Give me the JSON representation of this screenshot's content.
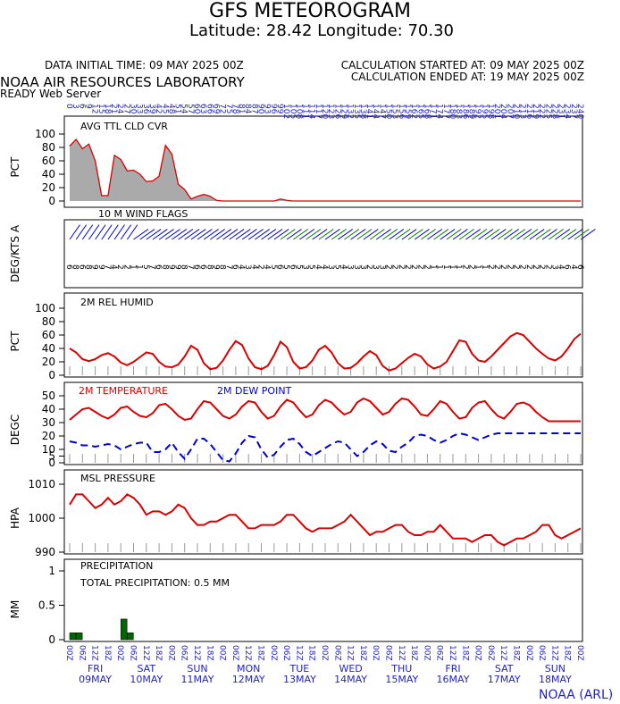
{
  "header": {
    "title": "GFS METEOROGRAM",
    "location": "Latitude: 28.42 Longitude:  70.30",
    "data_initial_time": "DATA INITIAL TIME: 09 MAY 2025 00Z",
    "calc_started": "CALCULATION STARTED AT: 09 MAY 2025 00Z",
    "calc_ended": "CALCULATION ENDED AT: 19 MAY 2025 00Z",
    "org": "NOAA AIR RESOURCES LABORATORY",
    "server": "READY Web Server",
    "footer": "NOAA (ARL)"
  },
  "top_axis_hours": [
    "0",
    "3",
    "6",
    "9",
    "12",
    "15",
    "18",
    "21",
    "24",
    "27",
    "30",
    "33",
    "36",
    "39",
    "42",
    "45",
    "48",
    "51",
    "54",
    "57",
    "60",
    "63",
    "66",
    "69",
    "72",
    "75",
    "78",
    "81",
    "84",
    "87",
    "90",
    "93",
    "96",
    "99",
    "102",
    "105",
    "108",
    "111",
    "114",
    "117",
    "120",
    "123",
    "126",
    "129",
    "132",
    "135",
    "138",
    "141",
    "144",
    "147",
    "150",
    "153",
    "156",
    "159",
    "162",
    "165",
    "168",
    "171",
    "174",
    "177",
    "180",
    "183",
    "186",
    "189",
    "192",
    "195",
    "198",
    "201",
    "204",
    "207",
    "210",
    "213",
    "216",
    "219",
    "222",
    "225",
    "228",
    "231",
    "234",
    "237",
    "240"
  ],
  "bottom_axis_hours": [
    "00Z",
    "06Z",
    "12Z",
    "18Z"
  ],
  "days": [
    {
      "dow": "FRI",
      "date": "09MAY"
    },
    {
      "dow": "SAT",
      "date": "10MAY"
    },
    {
      "dow": "SUN",
      "date": "11MAY"
    },
    {
      "dow": "MON",
      "date": "12MAY"
    },
    {
      "dow": "TUE",
      "date": "13MAY"
    },
    {
      "dow": "WED",
      "date": "14MAY"
    },
    {
      "dow": "THU",
      "date": "15MAY"
    },
    {
      "dow": "FRI",
      "date": "16MAY"
    },
    {
      "dow": "SAT",
      "date": "17MAY"
    },
    {
      "dow": "SUN",
      "date": "18MAY"
    }
  ],
  "colors": {
    "red": "#dd0000",
    "blue": "#0000dd",
    "green": "#006600",
    "gray": "#999999",
    "axis_blue": "#2222cc"
  },
  "chart_data": [
    {
      "type": "area",
      "title": "AVG TTL CLD CVR",
      "ylabel": "PCT",
      "ylim": [
        0,
        100
      ],
      "yticks": [
        0,
        20,
        40,
        60,
        80,
        100
      ],
      "x_hours": [
        0,
        3,
        6,
        9,
        12,
        15,
        18,
        21,
        24,
        27,
        30,
        33,
        36,
        39,
        42,
        45,
        48,
        51,
        54,
        57,
        60,
        63,
        66,
        69,
        72,
        96,
        99,
        102,
        105,
        108,
        111,
        240
      ],
      "values": [
        82,
        92,
        78,
        85,
        60,
        8,
        8,
        68,
        62,
        45,
        46,
        40,
        29,
        30,
        37,
        83,
        70,
        25,
        17,
        3,
        7,
        10,
        7,
        1,
        0,
        0,
        3,
        1,
        0,
        0,
        0,
        0
      ]
    },
    {
      "type": "wind_barbs",
      "title": "10 M  WIND FLAGS",
      "ylabel": "DEG/KTS A",
      "speeds_kts": [
        "6",
        "8",
        "6",
        "8",
        "9",
        "9",
        "7",
        "4",
        "2",
        "2",
        "1",
        "1",
        "5",
        "7",
        "6",
        "8",
        "9",
        "9",
        "8",
        "7",
        "6",
        "6",
        "8",
        "9",
        "8",
        "7",
        "6",
        "4",
        "3",
        "4",
        "2",
        "4",
        "5",
        "6",
        "5",
        "6",
        "5",
        "3",
        "5",
        "4",
        "4",
        "3",
        "5",
        "4",
        "3",
        "3",
        "3",
        "2",
        "3",
        "3",
        "2",
        "2",
        "2",
        "2",
        "2",
        "2",
        "2",
        "1",
        "1",
        "1",
        "1",
        "1",
        "2",
        "2",
        "1",
        "1",
        "2",
        "2",
        "2",
        "2",
        "2",
        "2",
        "2",
        "2",
        "2",
        "2",
        "3",
        "4",
        "6",
        "4",
        "6"
      ]
    },
    {
      "type": "line",
      "title": "2M REL HUMID",
      "ylabel": "PCT",
      "ylim": [
        0,
        100
      ],
      "yticks": [
        0,
        20,
        40,
        60,
        80,
        100
      ],
      "x_hours": [
        0,
        3,
        6,
        9,
        12,
        15,
        18,
        21,
        24,
        27,
        30,
        33,
        36,
        39,
        42,
        45,
        48,
        51,
        54,
        57,
        60,
        63,
        66,
        69,
        72,
        75,
        78,
        81,
        84,
        87,
        90,
        93,
        96,
        99,
        102,
        105,
        108,
        111,
        114,
        117,
        120,
        123,
        126,
        129,
        132,
        135,
        138,
        141,
        144,
        147,
        150,
        153,
        156,
        159,
        162,
        165,
        168,
        171,
        174,
        177,
        180,
        183,
        186,
        189,
        192,
        195,
        198,
        201,
        204,
        207,
        210,
        213,
        216,
        219,
        222,
        225,
        228,
        231,
        234,
        237,
        240
      ],
      "values": [
        40,
        34,
        24,
        21,
        24,
        30,
        33,
        28,
        19,
        15,
        20,
        27,
        34,
        32,
        20,
        13,
        12,
        16,
        28,
        44,
        38,
        18,
        9,
        11,
        22,
        38,
        51,
        45,
        25,
        12,
        9,
        14,
        30,
        50,
        42,
        20,
        10,
        12,
        22,
        38,
        44,
        34,
        18,
        10,
        11,
        18,
        28,
        36,
        30,
        14,
        7,
        10,
        18,
        26,
        32,
        28,
        16,
        10,
        13,
        20,
        36,
        52,
        50,
        32,
        22,
        20,
        28,
        38,
        48,
        58,
        63,
        60,
        50,
        40,
        32,
        25,
        22,
        28,
        40,
        54,
        62
      ]
    },
    {
      "type": "line",
      "title": "2M TEMPERATURE",
      "ylabel": "DEGC",
      "ylim": [
        0,
        50
      ],
      "yticks": [
        0,
        5,
        10,
        20,
        30,
        40,
        50
      ],
      "x_hours": [
        0,
        3,
        6,
        9,
        12,
        15,
        18,
        21,
        24,
        27,
        30,
        33,
        36,
        39,
        42,
        45,
        48,
        51,
        54,
        57,
        60,
        63,
        66,
        69,
        72,
        75,
        78,
        81,
        84,
        87,
        90,
        93,
        96,
        99,
        102,
        105,
        108,
        111,
        114,
        117,
        120,
        123,
        126,
        129,
        132,
        135,
        138,
        141,
        144,
        147,
        150,
        153,
        156,
        159,
        162,
        165,
        168,
        171,
        174,
        177,
        180,
        183,
        186,
        189,
        192,
        195,
        198,
        201,
        204,
        207,
        210,
        213,
        216,
        219,
        222,
        225,
        228,
        231,
        234,
        237,
        240
      ],
      "series": [
        {
          "name": "2M TEMPERATURE",
          "values": [
            32,
            36,
            40,
            41,
            38,
            35,
            33,
            36,
            41,
            42,
            38,
            35,
            34,
            37,
            43,
            44,
            40,
            35,
            32,
            33,
            40,
            46,
            45,
            40,
            35,
            33,
            36,
            42,
            46,
            45,
            38,
            33,
            35,
            42,
            47,
            45,
            39,
            34,
            36,
            43,
            47,
            45,
            40,
            36,
            38,
            45,
            48,
            46,
            41,
            36,
            38,
            44,
            48,
            47,
            42,
            36,
            35,
            40,
            46,
            44,
            38,
            33,
            34,
            41,
            45,
            46,
            40,
            35,
            33,
            38,
            44,
            45,
            43,
            38,
            34,
            31,
            31,
            31,
            31,
            31,
            31
          ]
        },
        {
          "name": "2M   DEW POINT",
          "values": [
            16,
            15,
            13,
            13,
            12,
            13,
            14,
            13,
            10,
            12,
            14,
            15,
            15,
            8,
            8,
            10,
            15,
            8,
            3,
            10,
            18,
            18,
            14,
            8,
            2,
            1,
            7,
            15,
            20,
            19,
            10,
            4,
            6,
            12,
            17,
            18,
            14,
            8,
            5,
            8,
            11,
            14,
            16,
            15,
            10,
            5,
            8,
            13,
            16,
            14,
            9,
            8,
            12,
            15,
            20,
            21,
            20,
            17,
            15,
            17,
            20,
            22,
            21,
            19,
            17,
            19,
            21,
            22,
            22,
            22,
            22,
            22,
            22,
            22,
            22,
            22,
            22,
            22,
            22,
            22,
            22
          ]
        }
      ]
    },
    {
      "type": "line",
      "title": "MSL PRESSURE",
      "ylabel": "HPA",
      "ylim": [
        990,
        1010
      ],
      "yticks": [
        990,
        1000,
        1010
      ],
      "x_hours": [
        0,
        3,
        6,
        9,
        12,
        15,
        18,
        21,
        24,
        27,
        30,
        33,
        36,
        39,
        42,
        45,
        48,
        51,
        54,
        57,
        60,
        63,
        66,
        69,
        72,
        75,
        78,
        81,
        84,
        87,
        90,
        93,
        96,
        99,
        102,
        105,
        108,
        111,
        114,
        117,
        120,
        123,
        126,
        129,
        132,
        135,
        138,
        141,
        144,
        147,
        150,
        153,
        156,
        159,
        162,
        165,
        168,
        171,
        174,
        177,
        180,
        183,
        186,
        189,
        192,
        195,
        198,
        201,
        204,
        207,
        210,
        213,
        216,
        219,
        222,
        225,
        228,
        231,
        234,
        237,
        240
      ],
      "values": [
        1004,
        1007,
        1007,
        1005,
        1003,
        1004,
        1006,
        1004,
        1005,
        1007,
        1006,
        1004,
        1001,
        1002,
        1002,
        1001,
        1002,
        1004,
        1003,
        1000,
        998,
        998,
        999,
        999,
        1000,
        1001,
        1001,
        999,
        997,
        997,
        998,
        998,
        998,
        999,
        1001,
        1001,
        999,
        997,
        996,
        997,
        997,
        997,
        998,
        999,
        1001,
        999,
        997,
        995,
        996,
        996,
        997,
        998,
        998,
        996,
        995,
        995,
        996,
        996,
        998,
        996,
        994,
        994,
        994,
        993,
        994,
        995,
        995,
        993,
        992,
        993,
        994,
        994,
        995,
        996,
        998,
        998,
        995,
        994,
        995,
        996,
        997
      ]
    },
    {
      "type": "bar",
      "title": "PRECIPITATION",
      "annotation": "TOTAL PRECIPITATION:  0.5 MM",
      "ylabel": "MM",
      "ylim": [
        0,
        1.0
      ],
      "yticks": [
        0.0,
        0.5,
        1.0
      ],
      "x_hours": [
        0,
        3,
        24,
        27
      ],
      "values": [
        0.1,
        0.1,
        0.3,
        0.1
      ]
    }
  ]
}
